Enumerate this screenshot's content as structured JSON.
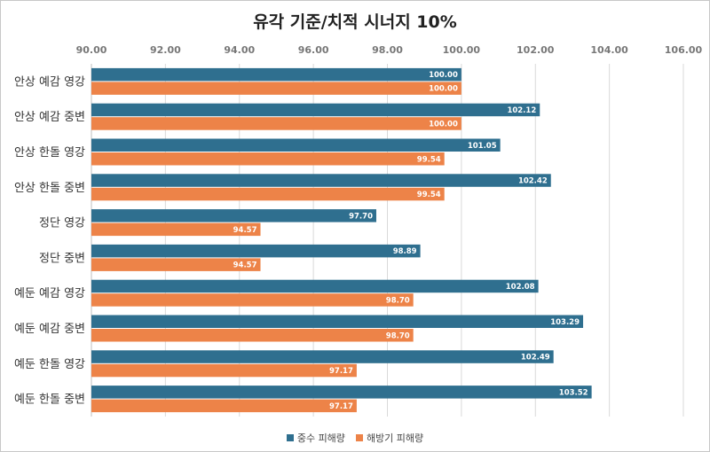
{
  "chart_data": {
    "type": "bar",
    "orientation": "horizontal",
    "title": "유각 기준/치적 시너지 10%",
    "categories": [
      "안상 예감 영강",
      "안상 예감 중변",
      "안상 한돌 영강",
      "안상 한돌 중변",
      "정단 영강",
      "정단 중변",
      "예둔 예감 영강",
      "예둔 예감 중변",
      "예둔 한돌 영강",
      "예둔 한돌 중변"
    ],
    "series": [
      {
        "name": "중수 피해량",
        "color": "#2f6f8f",
        "values": [
          100.0,
          102.12,
          101.05,
          102.42,
          97.7,
          98.89,
          102.08,
          103.29,
          102.49,
          103.52
        ],
        "labels": [
          "100.00",
          "102.12",
          "101.05",
          "102.42",
          "97.70",
          "98.89",
          "102.08",
          "103.29",
          "102.49",
          "103.52"
        ]
      },
      {
        "name": "해방기 피해량",
        "color": "#ed8348",
        "values": [
          100.0,
          100.0,
          99.54,
          99.54,
          94.57,
          94.57,
          98.7,
          98.7,
          97.17,
          97.17
        ],
        "labels": [
          "100.00",
          "100.00",
          "99.54",
          "99.54",
          "94.57",
          "94.57",
          "98.70",
          "98.70",
          "97.17",
          "97.17"
        ]
      }
    ],
    "xlim": [
      90,
      106
    ],
    "ticks": [
      "90.00",
      "92.00",
      "94.00",
      "96.00",
      "98.00",
      "100.00",
      "102.00",
      "104.00",
      "106.00"
    ],
    "tick_values": [
      90,
      92,
      94,
      96,
      98,
      100,
      102,
      104,
      106
    ],
    "axis_position": "top",
    "grid": true,
    "legend_position": "bottom"
  }
}
